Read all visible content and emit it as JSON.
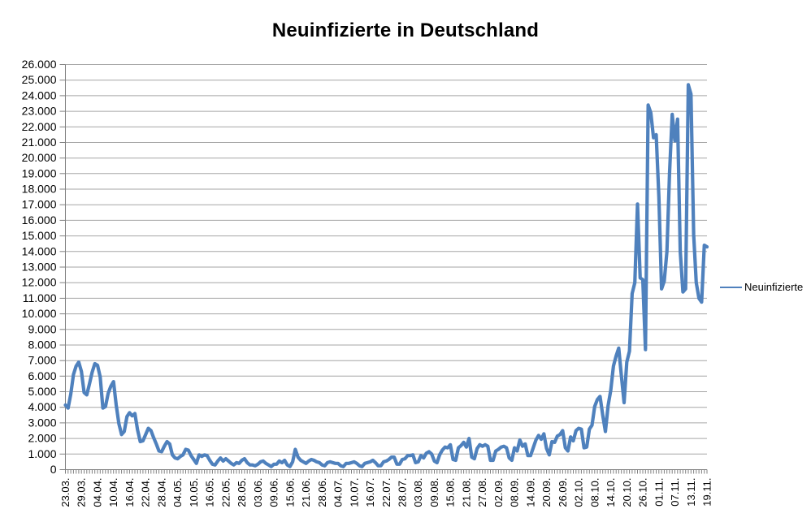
{
  "page": {
    "title": "Neuinfizierte in Deutschland"
  },
  "legend": {
    "label": "Neuinfizierte"
  },
  "chart_data": {
    "type": "line",
    "title": "Neuinfizierte in Deutschland",
    "xlabel": "",
    "ylabel": "",
    "ylim": [
      0,
      26000
    ],
    "grid": true,
    "legend_position": "right",
    "grid_color": "#A6A6A6",
    "axis_color": "#808080",
    "text_color": "#000000",
    "y_tick_labels": [
      "0",
      "1.000",
      "2.000",
      "3.000",
      "4.000",
      "5.000",
      "6.000",
      "7.000",
      "8.000",
      "9.000",
      "10.000",
      "11.000",
      "12.000",
      "13.000",
      "14.000",
      "15.000",
      "16.000",
      "17.000",
      "18.000",
      "19.000",
      "20.000",
      "21.000",
      "22.000",
      "23.000",
      "24.000",
      "25.000",
      "26.000"
    ],
    "x_tick_labels": [
      "23.03.",
      "29.03.",
      "04.04.",
      "10.04.",
      "16.04.",
      "22.04.",
      "28.04.",
      "04.05.",
      "10.05.",
      "16.05.",
      "22.05.",
      "28.05.",
      "03.06.",
      "09.06.",
      "15.06.",
      "21.06.",
      "28.06.",
      "04.07.",
      "10.07.",
      "16.07.",
      "22.07.",
      "28.07.",
      "03.08.",
      "09.08.",
      "15.08.",
      "21.08.",
      "27.08.",
      "02.09.",
      "08.09.",
      "14.09.",
      "20.09.",
      "26.09.",
      "02.10.",
      "08.10.",
      "14.10.",
      "20.10.",
      "26.10.",
      "01.11.",
      "07.11.",
      "13.11.",
      "19.11."
    ],
    "x_tick_every": 6,
    "date_range": "23.03. - 19.11.",
    "series": [
      {
        "name": "Neuinfizierte",
        "color": "#4F81BD",
        "values": [
          4150,
          3950,
          4850,
          6100,
          6650,
          6900,
          6300,
          4950,
          4800,
          5500,
          6250,
          6800,
          6700,
          5950,
          3950,
          4050,
          4900,
          5350,
          5650,
          4150,
          2950,
          2250,
          2450,
          3400,
          3650,
          3450,
          3600,
          2550,
          1800,
          1850,
          2250,
          2650,
          2500,
          2050,
          1650,
          1200,
          1150,
          1500,
          1800,
          1650,
          950,
          750,
          700,
          850,
          950,
          1300,
          1250,
          900,
          650,
          400,
          950,
          850,
          950,
          900,
          600,
          350,
          300,
          550,
          750,
          550,
          700,
          550,
          400,
          300,
          450,
          400,
          600,
          700,
          450,
          300,
          300,
          250,
          350,
          500,
          550,
          400,
          300,
          200,
          350,
          350,
          550,
          450,
          600,
          300,
          200,
          500,
          1300,
          800,
          600,
          500,
          400,
          550,
          650,
          600,
          500,
          450,
          300,
          250,
          450,
          500,
          450,
          400,
          400,
          250,
          200,
          400,
          400,
          450,
          500,
          400,
          250,
          200,
          400,
          450,
          500,
          600,
          450,
          250,
          250,
          500,
          550,
          650,
          800,
          800,
          350,
          350,
          650,
          700,
          900,
          900,
          950,
          450,
          500,
          900,
          750,
          1050,
          1150,
          1000,
          550,
          450,
          950,
          1250,
          1450,
          1400,
          1600,
          650,
          600,
          1400,
          1550,
          1750,
          1450,
          2000,
          800,
          700,
          1350,
          1600,
          1500,
          1600,
          1500,
          600,
          600,
          1200,
          1300,
          1450,
          1500,
          1400,
          750,
          600,
          1400,
          1200,
          1900,
          1500,
          1650,
          900,
          900,
          1400,
          1900,
          2200,
          1950,
          2300,
          1350,
          950,
          1800,
          1750,
          2150,
          2250,
          2500,
          1400,
          1200,
          2100,
          1850,
          2500,
          2650,
          2600,
          1400,
          1450,
          2600,
          2850,
          4050,
          4500,
          4700,
          3500,
          2450,
          4100,
          5100,
          6650,
          7300,
          7800,
          6000,
          4300,
          6900,
          7600,
          11300,
          12000,
          17050,
          12300,
          12200,
          7700,
          23400,
          22900,
          21300,
          21500,
          17500,
          11600,
          12100,
          14000,
          19000,
          22800,
          21100,
          22500,
          14000,
          11400,
          11600,
          24700,
          24100,
          15100,
          12000,
          11000,
          10750,
          14400,
          14300
        ]
      }
    ]
  }
}
